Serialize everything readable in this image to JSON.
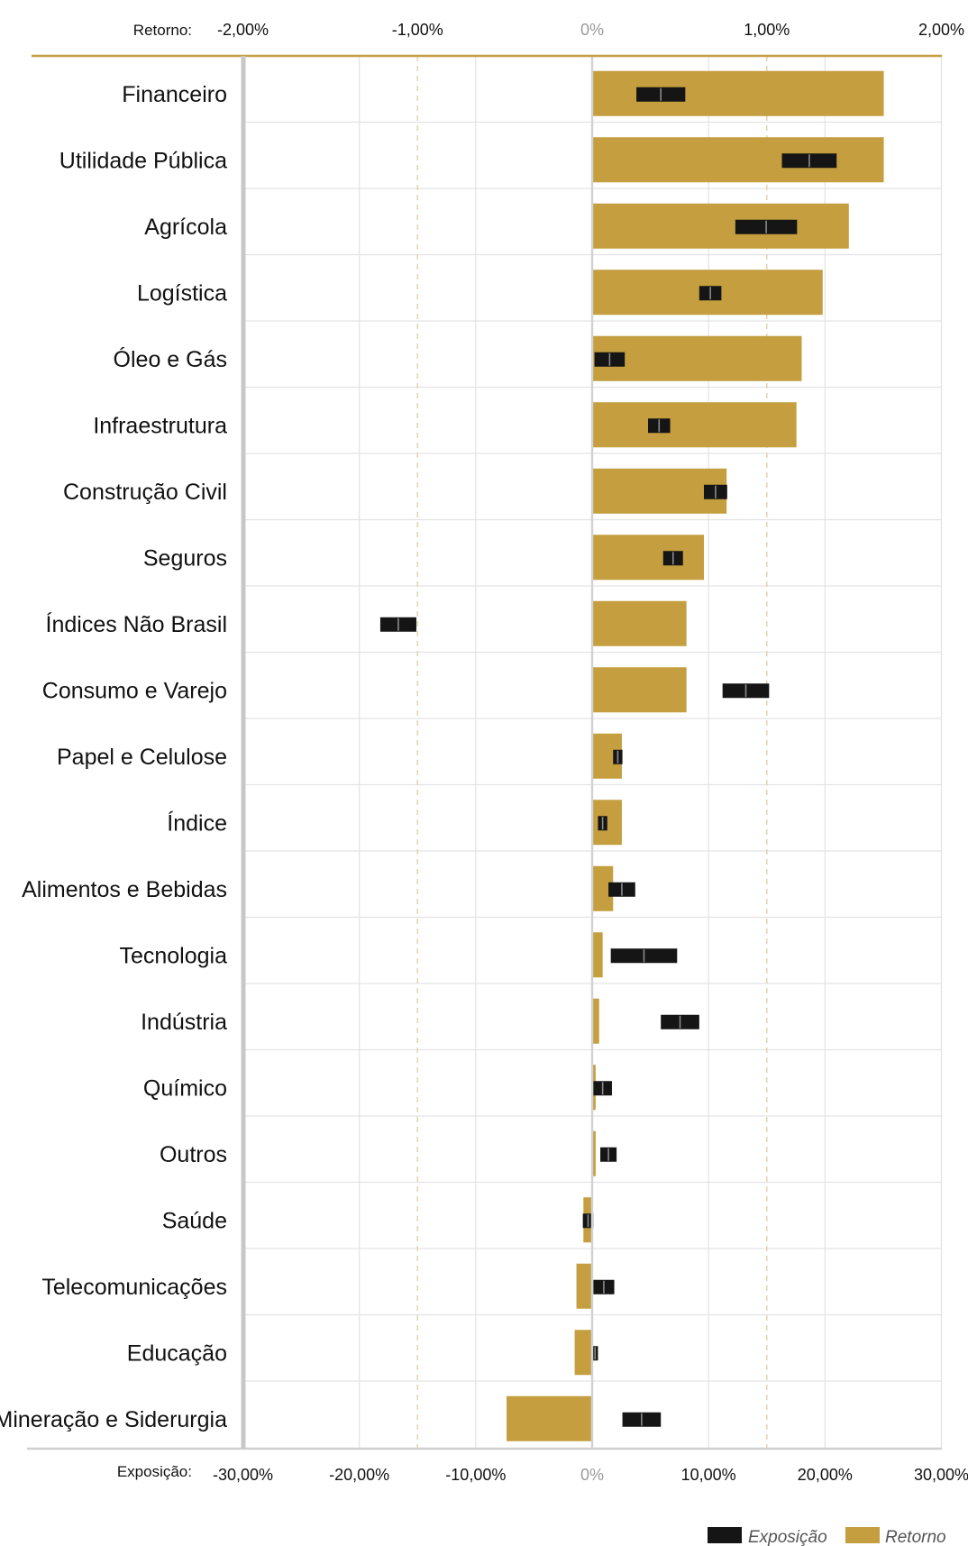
{
  "chart_data": {
    "type": "bar",
    "top_axis": {
      "label": "Retorno:",
      "range": [
        -2.0,
        2.0
      ],
      "ticks": [
        -2.0,
        -1.0,
        0,
        1.0,
        2.0
      ],
      "tick_labels": [
        "-2,00%",
        "-1,00%",
        "0%",
        "1,00%",
        "2,00%"
      ]
    },
    "bottom_axis": {
      "label": "Exposição:",
      "range": [
        -30,
        30
      ],
      "ticks": [
        -30,
        -20,
        -10,
        0,
        10,
        20,
        30
      ],
      "tick_labels": [
        "-30,00%",
        "-20,00%",
        "-10,00%",
        "0%",
        "10,00%",
        "20,00%",
        "30,00%"
      ]
    },
    "categories": [
      "Financeiro",
      "Utilidade Pública",
      "Agrícola",
      "Logística",
      "Óleo e Gás",
      "Infraestrutura",
      "Construção Civil",
      "Seguros",
      "Índices Não Brasil",
      "Consumo e Varejo",
      "Papel e Celulose",
      "Índice",
      "Alimentos e Bebidas",
      "Tecnologia",
      "Indústria",
      "Químico",
      "Outros",
      "Saúde",
      "Telecomunicações",
      "Educação",
      "Mineração e Siderurgia"
    ],
    "series": [
      {
        "name": "Retorno",
        "color": "#c49e3f",
        "values": [
          1.67,
          1.67,
          1.47,
          1.32,
          1.2,
          1.17,
          0.77,
          0.64,
          0.54,
          0.54,
          0.17,
          0.17,
          0.12,
          0.06,
          0.04,
          0.02,
          0.02,
          -0.05,
          -0.09,
          -0.1,
          -0.49
        ]
      },
      {
        "name": "Exposição",
        "color": "#151515",
        "ranges": [
          [
            3.8,
            8.0
          ],
          [
            16.3,
            21.0
          ],
          [
            12.3,
            17.6
          ],
          [
            9.2,
            11.1
          ],
          [
            0.2,
            2.8
          ],
          [
            4.8,
            6.7
          ],
          [
            9.6,
            11.6
          ],
          [
            6.1,
            7.8
          ],
          [
            -18.2,
            -15.1
          ],
          [
            11.2,
            15.2
          ],
          [
            1.8,
            2.6
          ],
          [
            0.5,
            1.3
          ],
          [
            1.4,
            3.7
          ],
          [
            1.6,
            7.3
          ],
          [
            5.9,
            9.2
          ],
          [
            0.1,
            1.7
          ],
          [
            0.7,
            2.1
          ],
          [
            -0.8,
            0.1
          ],
          [
            0.1,
            1.9
          ],
          [
            0.0,
            0.5
          ],
          [
            2.6,
            5.9
          ]
        ]
      }
    ],
    "legend": {
      "placement": "bottom-right",
      "entries": [
        {
          "label": "Exposição",
          "color": "#151515"
        },
        {
          "label": "Retorno",
          "color": "#c49e3f"
        }
      ]
    },
    "grid": true
  }
}
